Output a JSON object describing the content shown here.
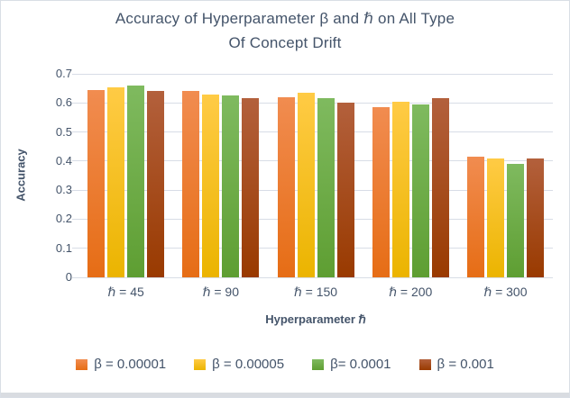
{
  "figure": {
    "title_line1": "Accuracy  of Hyperparameter β and ℏ on All Type",
    "title_line2": "Of Concept Drift"
  },
  "colors": {
    "text": "#44546a",
    "gridline": "#d8dde6"
  },
  "chart_data": {
    "type": "bar",
    "title": "Accuracy  of Hyperparameter β and ℏ on All Type Of Concept Drift",
    "xlabel": "Hyperparameter ℏ",
    "ylabel": "Accuracy",
    "ylim": [
      0,
      0.7
    ],
    "yticks": [
      0,
      0.1,
      0.2,
      0.3,
      0.4,
      0.5,
      0.6,
      0.7
    ],
    "ytick_labels": [
      "0",
      "0.1",
      "0.2",
      "0.3",
      "0.4",
      "0.5",
      "0.6",
      "0.7"
    ],
    "grid": true,
    "legend_position": "bottom",
    "categories": [
      "ℏ = 45",
      "ℏ = 90",
      "ℏ = 150",
      "ℏ = 200",
      "ℏ = 300"
    ],
    "series": [
      {
        "name": "β = 0.00001",
        "color_top": "#f18c50",
        "color_bottom": "#e66d15",
        "values": [
          0.645,
          0.64,
          0.62,
          0.585,
          0.415
        ]
      },
      {
        "name": "β = 0.00005",
        "color_top": "#ffcb45",
        "color_bottom": "#ebb400",
        "values": [
          0.655,
          0.63,
          0.635,
          0.605,
          0.41
        ]
      },
      {
        "name": "β= 0.0001",
        "color_top": "#7fba5f",
        "color_bottom": "#5e9e32",
        "values": [
          0.66,
          0.625,
          0.615,
          0.595,
          0.39
        ]
      },
      {
        "name": "β = 0.001",
        "color_top": "#b3603c",
        "color_bottom": "#993a00",
        "values": [
          0.64,
          0.615,
          0.6,
          0.615,
          0.41
        ]
      }
    ]
  }
}
